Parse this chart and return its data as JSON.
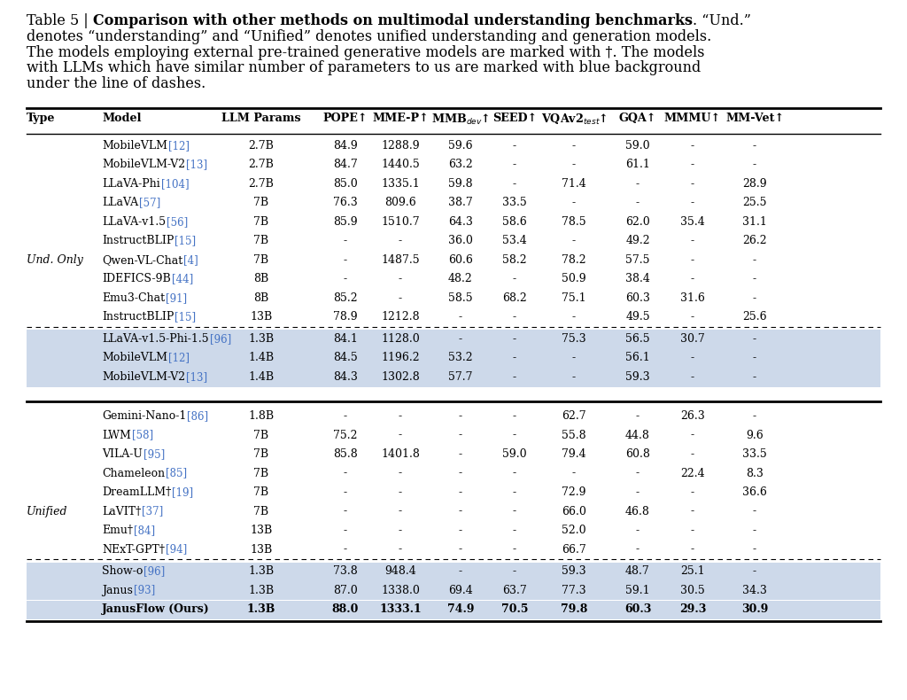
{
  "rows": [
    {
      "type": "",
      "model": "MobileVLM",
      "ref": "[12]",
      "llm": "2.7B",
      "pope": "84.9",
      "mmep": "1288.9",
      "mmb": "59.6",
      "seed": "-",
      "vqa": "-",
      "gqa": "59.0",
      "mmmu": "-",
      "mmvet": "-",
      "bg": false,
      "bold": false,
      "dashed_above": false
    },
    {
      "type": "",
      "model": "MobileVLM-V2",
      "ref": "[13]",
      "llm": "2.7B",
      "pope": "84.7",
      "mmep": "1440.5",
      "mmb": "63.2",
      "seed": "-",
      "vqa": "-",
      "gqa": "61.1",
      "mmmu": "-",
      "mmvet": "-",
      "bg": false,
      "bold": false,
      "dashed_above": false
    },
    {
      "type": "",
      "model": "LLaVA-Phi",
      "ref": "[104]",
      "llm": "2.7B",
      "pope": "85.0",
      "mmep": "1335.1",
      "mmb": "59.8",
      "seed": "-",
      "vqa": "71.4",
      "gqa": "-",
      "mmmu": "-",
      "mmvet": "28.9",
      "bg": false,
      "bold": false,
      "dashed_above": false
    },
    {
      "type": "",
      "model": "LLaVA",
      "ref": "[57]",
      "llm": "7B",
      "pope": "76.3",
      "mmep": "809.6",
      "mmb": "38.7",
      "seed": "33.5",
      "vqa": "-",
      "gqa": "-",
      "mmmu": "-",
      "mmvet": "25.5",
      "bg": false,
      "bold": false,
      "dashed_above": false
    },
    {
      "type": "",
      "model": "LLaVA-v1.5",
      "ref": "[56]",
      "llm": "7B",
      "pope": "85.9",
      "mmep": "1510.7",
      "mmb": "64.3",
      "seed": "58.6",
      "vqa": "78.5",
      "gqa": "62.0",
      "mmmu": "35.4",
      "mmvet": "31.1",
      "bg": false,
      "bold": false,
      "dashed_above": false
    },
    {
      "type": "",
      "model": "InstructBLIP",
      "ref": "[15]",
      "llm": "7B",
      "pope": "-",
      "mmep": "-",
      "mmb": "36.0",
      "seed": "53.4",
      "vqa": "-",
      "gqa": "49.2",
      "mmmu": "-",
      "mmvet": "26.2",
      "bg": false,
      "bold": false,
      "dashed_above": false
    },
    {
      "type": "Und. Only",
      "model": "Qwen-VL-Chat",
      "ref": "[4]",
      "llm": "7B",
      "pope": "-",
      "mmep": "1487.5",
      "mmb": "60.6",
      "seed": "58.2",
      "vqa": "78.2",
      "gqa": "57.5",
      "mmmu": "-",
      "mmvet": "-",
      "bg": false,
      "bold": false,
      "dashed_above": false
    },
    {
      "type": "",
      "model": "IDEFICS-9B",
      "ref": "[44]",
      "llm": "8B",
      "pope": "-",
      "mmep": "-",
      "mmb": "48.2",
      "seed": "-",
      "vqa": "50.9",
      "gqa": "38.4",
      "mmmu": "-",
      "mmvet": "-",
      "bg": false,
      "bold": false,
      "dashed_above": false
    },
    {
      "type": "",
      "model": "Emu3-Chat",
      "ref": "[91]",
      "llm": "8B",
      "pope": "85.2",
      "mmep": "-",
      "mmb": "58.5",
      "seed": "68.2",
      "vqa": "75.1",
      "gqa": "60.3",
      "mmmu": "31.6",
      "mmvet": "-",
      "bg": false,
      "bold": false,
      "dashed_above": false
    },
    {
      "type": "",
      "model": "InstructBLIP",
      "ref": "[15]",
      "llm": "13B",
      "pope": "78.9",
      "mmep": "1212.8",
      "mmb": "-",
      "seed": "-",
      "vqa": "-",
      "gqa": "49.5",
      "mmmu": "-",
      "mmvet": "25.6",
      "bg": false,
      "bold": false,
      "dashed_above": false
    },
    {
      "type": "",
      "model": "LLaVA-v1.5-Phi-1.5",
      "ref": "[96]",
      "llm": "1.3B",
      "pope": "84.1",
      "mmep": "1128.0",
      "mmb": "-",
      "seed": "-",
      "vqa": "75.3",
      "gqa": "56.5",
      "mmmu": "30.7",
      "mmvet": "-",
      "bg": true,
      "bold": false,
      "dashed_above": true
    },
    {
      "type": "",
      "model": "MobileVLM",
      "ref": "[12]",
      "llm": "1.4B",
      "pope": "84.5",
      "mmep": "1196.2",
      "mmb": "53.2",
      "seed": "-",
      "vqa": "-",
      "gqa": "56.1",
      "mmmu": "-",
      "mmvet": "-",
      "bg": true,
      "bold": false,
      "dashed_above": false
    },
    {
      "type": "",
      "model": "MobileVLM-V2",
      "ref": "[13]",
      "llm": "1.4B",
      "pope": "84.3",
      "mmep": "1302.8",
      "mmb": "57.7",
      "seed": "-",
      "vqa": "-",
      "gqa": "59.3",
      "mmmu": "-",
      "mmvet": "-",
      "bg": true,
      "bold": false,
      "dashed_above": false
    },
    {
      "type": "BREAK",
      "model": "",
      "ref": "",
      "llm": "",
      "pope": "",
      "mmep": "",
      "mmb": "",
      "seed": "",
      "vqa": "",
      "gqa": "",
      "mmmu": "",
      "mmvet": "",
      "bg": false,
      "bold": false,
      "dashed_above": false
    },
    {
      "type": "",
      "model": "Gemini-Nano-1",
      "ref": "[86]",
      "llm": "1.8B",
      "pope": "-",
      "mmep": "-",
      "mmb": "-",
      "seed": "-",
      "vqa": "62.7",
      "gqa": "-",
      "mmmu": "26.3",
      "mmvet": "-",
      "bg": false,
      "bold": false,
      "dashed_above": false
    },
    {
      "type": "",
      "model": "LWM",
      "ref": "[58]",
      "llm": "7B",
      "pope": "75.2",
      "mmep": "-",
      "mmb": "-",
      "seed": "-",
      "vqa": "55.8",
      "gqa": "44.8",
      "mmmu": "-",
      "mmvet": "9.6",
      "bg": false,
      "bold": false,
      "dashed_above": false
    },
    {
      "type": "",
      "model": "VILA-U",
      "ref": "[95]",
      "llm": "7B",
      "pope": "85.8",
      "mmep": "1401.8",
      "mmb": "-",
      "seed": "59.0",
      "vqa": "79.4",
      "gqa": "60.8",
      "mmmu": "-",
      "mmvet": "33.5",
      "bg": false,
      "bold": false,
      "dashed_above": false
    },
    {
      "type": "",
      "model": "Chameleon",
      "ref": "[85]",
      "llm": "7B",
      "pope": "-",
      "mmep": "-",
      "mmb": "-",
      "seed": "-",
      "vqa": "-",
      "gqa": "-",
      "mmmu": "22.4",
      "mmvet": "8.3",
      "bg": false,
      "bold": false,
      "dashed_above": false
    },
    {
      "type": "",
      "model": "DreamLLM†",
      "ref": "[19]",
      "llm": "7B",
      "pope": "-",
      "mmep": "-",
      "mmb": "-",
      "seed": "-",
      "vqa": "72.9",
      "gqa": "-",
      "mmmu": "-",
      "mmvet": "36.6",
      "bg": false,
      "bold": false,
      "dashed_above": false
    },
    {
      "type": "Unified",
      "model": "LaVIT†",
      "ref": "[37]",
      "llm": "7B",
      "pope": "-",
      "mmep": "-",
      "mmb": "-",
      "seed": "-",
      "vqa": "66.0",
      "gqa": "46.8",
      "mmmu": "-",
      "mmvet": "-",
      "bg": false,
      "bold": false,
      "dashed_above": false
    },
    {
      "type": "",
      "model": "Emu†",
      "ref": "[84]",
      "llm": "13B",
      "pope": "-",
      "mmep": "-",
      "mmb": "-",
      "seed": "-",
      "vqa": "52.0",
      "gqa": "-",
      "mmmu": "-",
      "mmvet": "-",
      "bg": false,
      "bold": false,
      "dashed_above": false
    },
    {
      "type": "",
      "model": "NExT-GPT†",
      "ref": "[94]",
      "llm": "13B",
      "pope": "-",
      "mmep": "-",
      "mmb": "-",
      "seed": "-",
      "vqa": "66.7",
      "gqa": "-",
      "mmmu": "-",
      "mmvet": "-",
      "bg": false,
      "bold": false,
      "dashed_above": false
    },
    {
      "type": "",
      "model": "Show-o",
      "ref": "[96]",
      "llm": "1.3B",
      "pope": "73.8",
      "mmep": "948.4",
      "mmb": "-",
      "seed": "-",
      "vqa": "59.3",
      "gqa": "48.7",
      "mmmu": "25.1",
      "mmvet": "-",
      "bg": true,
      "bold": false,
      "dashed_above": true
    },
    {
      "type": "",
      "model": "Janus",
      "ref": "[93]",
      "llm": "1.3B",
      "pope": "87.0",
      "mmep": "1338.0",
      "mmb": "69.4",
      "seed": "63.7",
      "vqa": "77.3",
      "gqa": "59.1",
      "mmmu": "30.5",
      "mmvet": "34.3",
      "bg": true,
      "bold": false,
      "dashed_above": false
    },
    {
      "type": "",
      "model": "JanusFlow (Ours)",
      "ref": "",
      "llm": "1.3B",
      "pope": "88.0",
      "mmep": "1333.1",
      "mmb": "74.9",
      "seed": "70.5",
      "vqa": "79.8",
      "gqa": "60.3",
      "mmmu": "29.3",
      "mmvet": "30.9",
      "bg": true,
      "bold": true,
      "dashed_above": false
    }
  ],
  "bg_color": "#ffffff",
  "ref_color": "#4472c4",
  "blue_bg_color": "#cdd9ea",
  "table_font": 9.0,
  "header_font": 9.2,
  "caption_font": 11.5
}
